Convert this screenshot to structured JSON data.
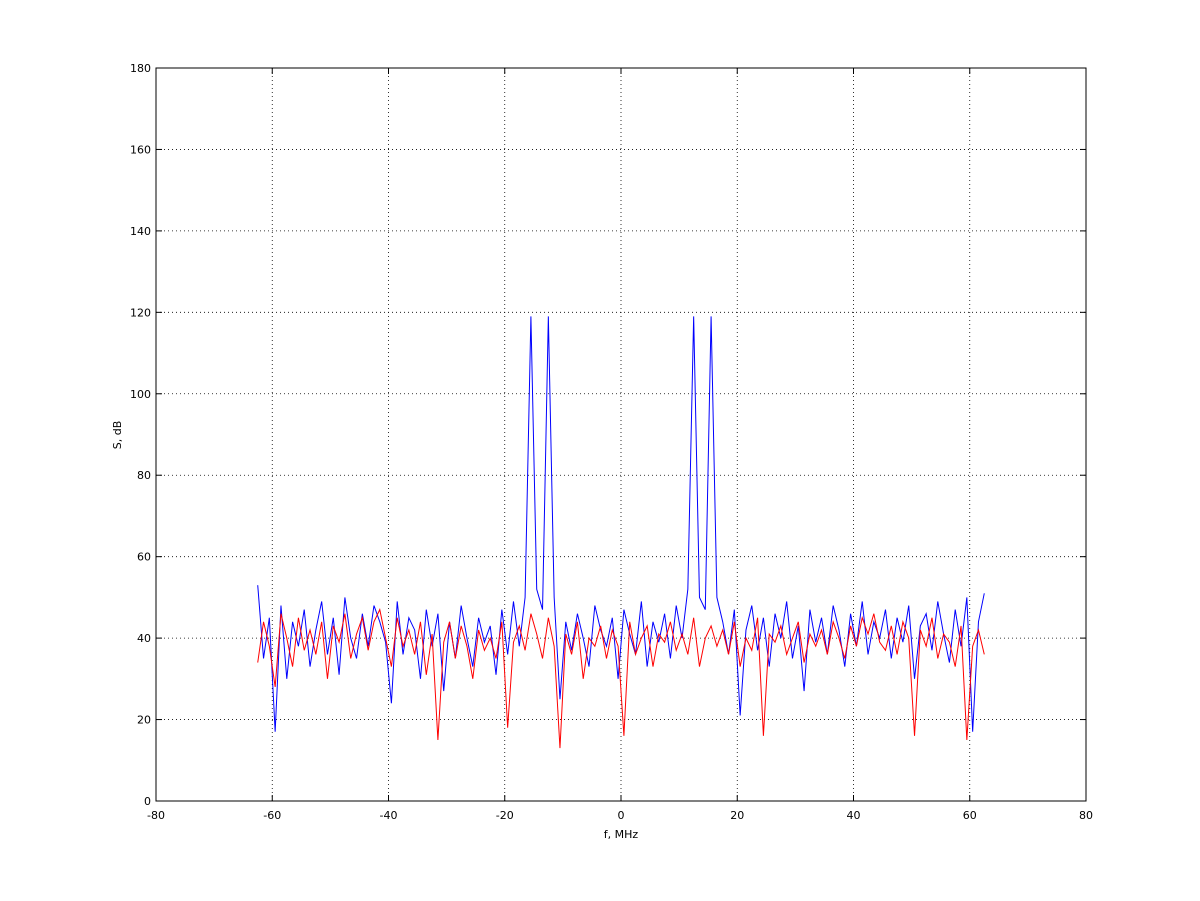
{
  "chart_data": {
    "type": "line",
    "xlabel": "f, MHz",
    "ylabel": "S, dB",
    "xlim": [
      -80,
      80
    ],
    "xticks": [
      -80,
      -60,
      -40,
      -20,
      0,
      20,
      40,
      60,
      80
    ],
    "ylim": [
      0,
      180
    ],
    "yticks": [
      0,
      20,
      40,
      60,
      80,
      100,
      120,
      140,
      160,
      180
    ],
    "grid": true,
    "x": [
      -62.5,
      -61.5,
      -60.5,
      -59.5,
      -58.5,
      -57.5,
      -56.5,
      -55.5,
      -54.5,
      -53.5,
      -52.5,
      -51.5,
      -50.5,
      -49.5,
      -48.5,
      -47.5,
      -46.5,
      -45.5,
      -44.5,
      -43.5,
      -42.5,
      -41.5,
      -40.5,
      -39.5,
      -38.5,
      -37.5,
      -36.5,
      -35.5,
      -34.5,
      -33.5,
      -32.5,
      -31.5,
      -30.5,
      -29.5,
      -28.5,
      -27.5,
      -26.5,
      -25.5,
      -24.5,
      -23.5,
      -22.5,
      -21.5,
      -20.5,
      -19.5,
      -18.5,
      -17.5,
      -16.5,
      -15.5,
      -14.5,
      -13.5,
      -12.5,
      -11.5,
      -10.5,
      -9.5,
      -8.5,
      -7.5,
      -6.5,
      -5.5,
      -4.5,
      -3.5,
      -2.5,
      -1.5,
      -0.5,
      0.5,
      1.5,
      2.5,
      3.5,
      4.5,
      5.5,
      6.5,
      7.5,
      8.5,
      9.5,
      10.5,
      11.5,
      12.5,
      13.5,
      14.5,
      15.5,
      16.5,
      17.5,
      18.5,
      19.5,
      20.5,
      21.5,
      22.5,
      23.5,
      24.5,
      25.5,
      26.5,
      27.5,
      28.5,
      29.5,
      30.5,
      31.5,
      32.5,
      33.5,
      34.5,
      35.5,
      36.5,
      37.5,
      38.5,
      39.5,
      40.5,
      41.5,
      42.5,
      43.5,
      44.5,
      45.5,
      46.5,
      47.5,
      48.5,
      49.5,
      50.5,
      51.5,
      52.5,
      53.5,
      54.5,
      55.5,
      56.5,
      57.5,
      58.5,
      59.5,
      60.5,
      61.5,
      62.5
    ],
    "series": [
      {
        "color": "#0000ff",
        "values": [
          53,
          35,
          45,
          17,
          48,
          30,
          44,
          38,
          47,
          33,
          42,
          49,
          36,
          45,
          31,
          50,
          40,
          35,
          46,
          38,
          48,
          44,
          39,
          24,
          49,
          36,
          45,
          42,
          30,
          47,
          38,
          46,
          27,
          44,
          35,
          48,
          40,
          33,
          45,
          39,
          43,
          31,
          47,
          36,
          49,
          38,
          50,
          119,
          52,
          47,
          119,
          50,
          25,
          44,
          37,
          46,
          40,
          33,
          48,
          42,
          38,
          45,
          30,
          47,
          41,
          36,
          49,
          33,
          44,
          39,
          46,
          35,
          48,
          40,
          52,
          119,
          50,
          47,
          119,
          50,
          44,
          36,
          47,
          21,
          42,
          48,
          37,
          45,
          33,
          46,
          40,
          49,
          35,
          43,
          27,
          47,
          39,
          45,
          36,
          48,
          42,
          33,
          46,
          38,
          49,
          36,
          44,
          40,
          47,
          35,
          45,
          39,
          48,
          30,
          43,
          46,
          37,
          49,
          41,
          34,
          47,
          38,
          50,
          17,
          44,
          51
        ]
      },
      {
        "color": "#ff0000",
        "values": [
          34,
          44,
          38,
          28,
          46,
          40,
          33,
          45,
          37,
          42,
          36,
          44,
          30,
          43,
          39,
          46,
          35,
          41,
          45,
          37,
          44,
          47,
          40,
          33,
          45,
          38,
          42,
          36,
          44,
          31,
          41,
          15,
          39,
          44,
          35,
          43,
          38,
          30,
          42,
          37,
          40,
          35,
          44,
          18,
          39,
          43,
          37,
          46,
          41,
          35,
          45,
          38,
          13,
          41,
          36,
          44,
          30,
          40,
          38,
          43,
          35,
          42,
          38,
          16,
          44,
          36,
          40,
          43,
          33,
          41,
          39,
          44,
          37,
          41,
          36,
          45,
          33,
          40,
          43,
          38,
          42,
          36,
          44,
          33,
          40,
          37,
          45,
          16,
          41,
          39,
          43,
          36,
          40,
          44,
          34,
          41,
          38,
          42,
          36,
          44,
          40,
          35,
          43,
          38,
          45,
          41,
          46,
          39,
          37,
          43,
          36,
          44,
          40,
          16,
          42,
          38,
          45,
          35,
          41,
          39,
          33,
          43,
          15,
          38,
          42,
          36
        ]
      }
    ]
  }
}
